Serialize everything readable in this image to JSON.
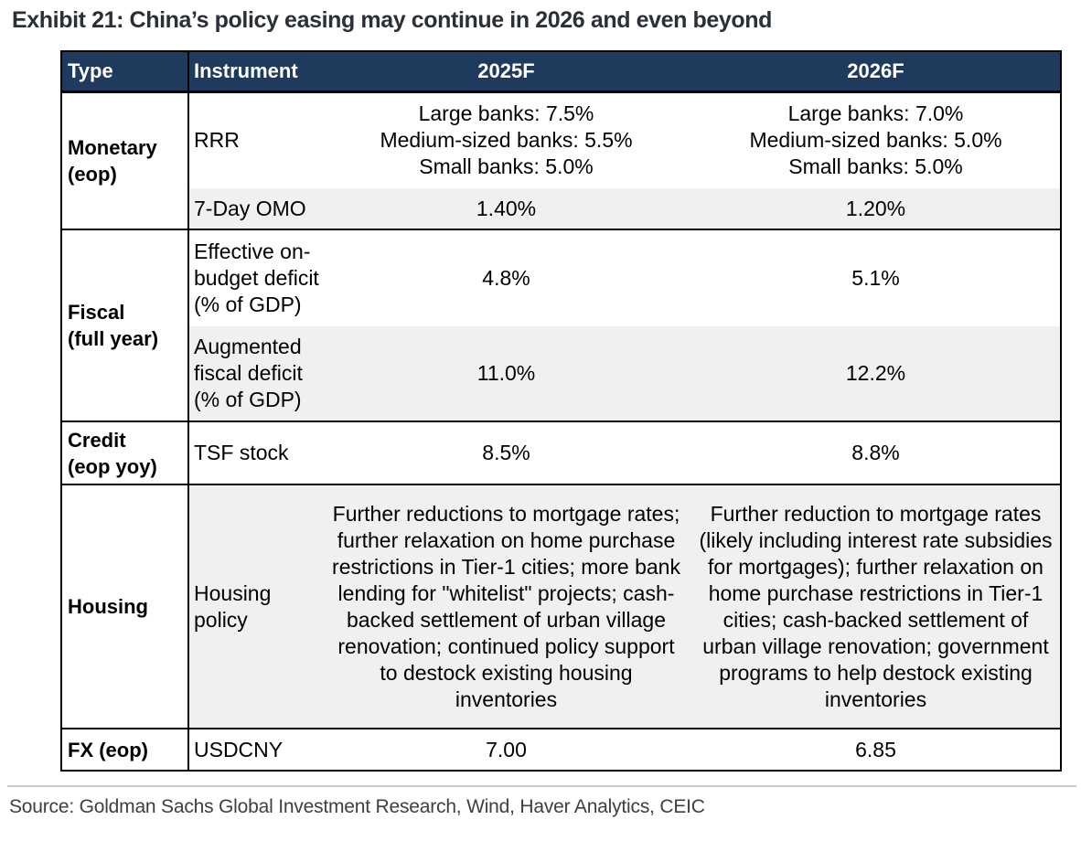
{
  "title": "Exhibit 21: China’s policy easing may continue in 2026 and even beyond",
  "source": "Source: Goldman Sachs Global Investment Research, Wind, Haver Analytics, CEIC",
  "colors": {
    "header_bg": "#1e3a5c",
    "header_text": "#ffffff",
    "shaded_row_bg": "#f0f0f0",
    "border": "#000000",
    "title_text": "#2b2f38",
    "source_text": "#3c4046"
  },
  "table": {
    "headers": [
      "Type",
      "Instrument",
      "2025F",
      "2026F"
    ],
    "groups": [
      {
        "type": "Monetary\n(eop)",
        "rows": [
          {
            "instrument": "RRR",
            "y2025": "Large banks: 7.5%\nMedium-sized banks: 5.5%\nSmall banks: 5.0%",
            "y2026": "Large banks: 7.0%\nMedium-sized banks: 5.0%\nSmall banks: 5.0%",
            "shaded": false
          },
          {
            "instrument": "7-Day OMO",
            "y2025": "1.40%",
            "y2026": "1.20%",
            "shaded": true
          }
        ]
      },
      {
        "type": "Fiscal\n(full year)",
        "rows": [
          {
            "instrument": "Effective on-\nbudget deficit\n(% of GDP)",
            "y2025": "4.8%",
            "y2026": "5.1%",
            "shaded": false
          },
          {
            "instrument": "Augmented\nfiscal deficit\n(% of GDP)",
            "y2025": "11.0%",
            "y2026": "12.2%",
            "shaded": true
          }
        ]
      },
      {
        "type": "Credit\n(eop yoy)",
        "rows": [
          {
            "instrument": "TSF stock",
            "y2025": "8.5%",
            "y2026": "8.8%",
            "shaded": false
          }
        ]
      },
      {
        "type": "Housing",
        "rows": [
          {
            "instrument": "Housing\npolicy",
            "y2025": "Further reductions to mortgage rates;\nfurther relaxation on home purchase\nrestrictions in Tier-1 cities; more bank\nlending for \"whitelist\" projects; cash-\nbacked settlement of urban village\nrenovation; continued policy support\nto destock existing housing\ninventories",
            "y2026": "Further reduction to mortgage rates\n(likely including interest rate subsidies\nfor mortgages); further relaxation on\nhome purchase restrictions in Tier-1\ncities; cash-backed settlement of\nurban village renovation; government\nprograms to help destock existing\ninventories",
            "shaded": true
          }
        ]
      },
      {
        "type": "FX (eop)",
        "rows": [
          {
            "instrument": "USDCNY",
            "y2025": "7.00",
            "y2026": "6.85",
            "shaded": false
          }
        ]
      }
    ]
  }
}
